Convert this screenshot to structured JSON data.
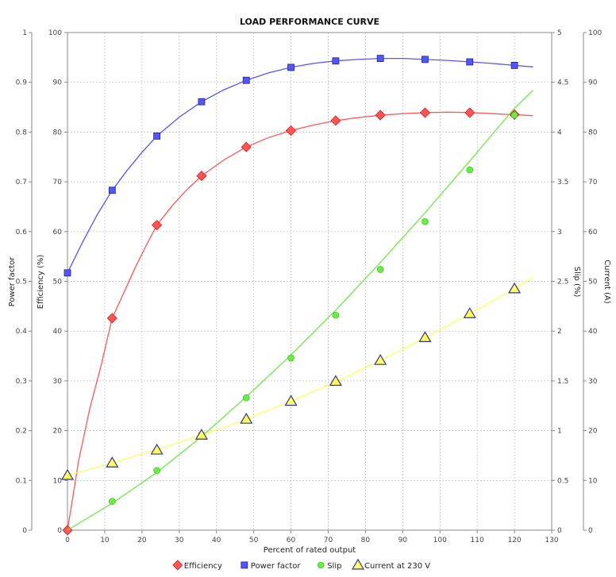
{
  "chart_data": {
    "type": "line",
    "title": "LOAD PERFORMANCE CURVE",
    "xlabel": "Percent of rated output",
    "xlim": [
      0,
      130
    ],
    "x_ticks": [
      0,
      10,
      20,
      30,
      40,
      50,
      60,
      70,
      80,
      90,
      100,
      110,
      120,
      130
    ],
    "grid": true,
    "legend_placement": "bottom",
    "axes": {
      "power_factor": {
        "label": "Power factor",
        "range": [
          0,
          1
        ],
        "ticks": [
          "0",
          "0.1",
          "0.2",
          "0.3",
          "0.4",
          "0.5",
          "0.6",
          "0.7",
          "0.8",
          "0.9",
          "1"
        ]
      },
      "efficiency": {
        "label": "Efficiency (%)",
        "range": [
          0,
          100
        ],
        "ticks": [
          "0",
          "10",
          "20",
          "30",
          "40",
          "50",
          "60",
          "70",
          "80",
          "90",
          "100"
        ]
      },
      "slip": {
        "label": "Slip (%)",
        "range": [
          0,
          5
        ],
        "ticks": [
          "0",
          "0.5",
          "1",
          "1.5",
          "2",
          "2.5",
          "3",
          "3.5",
          "4",
          "4.5",
          "5"
        ]
      },
      "current": {
        "label": "Current (A)",
        "range": [
          0,
          100
        ],
        "ticks": [
          "0",
          "10",
          "20",
          "30",
          "40",
          "50",
          "60",
          "70",
          "80",
          "90",
          "100"
        ]
      }
    },
    "series": [
      {
        "name": "Efficiency",
        "axis": "efficiency",
        "color": "#ff5555",
        "marker": "diamond",
        "points": [
          [
            0,
            0
          ],
          [
            12,
            42.6
          ],
          [
            24,
            61.3
          ],
          [
            36,
            71.2
          ],
          [
            48,
            77.0
          ],
          [
            60,
            80.3
          ],
          [
            72,
            82.3
          ],
          [
            84,
            83.4
          ],
          [
            96,
            83.9
          ],
          [
            108,
            83.9
          ],
          [
            120,
            83.5
          ]
        ],
        "curve": [
          [
            0,
            0
          ],
          [
            3,
            14
          ],
          [
            6,
            24.5
          ],
          [
            9,
            33
          ],
          [
            12,
            42.6
          ],
          [
            15,
            47.5
          ],
          [
            18,
            52.5
          ],
          [
            21,
            57
          ],
          [
            24,
            61.3
          ],
          [
            28,
            65.1
          ],
          [
            32,
            68.4
          ],
          [
            36,
            71.2
          ],
          [
            42,
            74.4
          ],
          [
            48,
            77.0
          ],
          [
            54,
            78.9
          ],
          [
            60,
            80.3
          ],
          [
            66,
            81.4
          ],
          [
            72,
            82.3
          ],
          [
            78,
            82.9
          ],
          [
            84,
            83.4
          ],
          [
            90,
            83.7
          ],
          [
            96,
            83.9
          ],
          [
            102,
            84.0
          ],
          [
            108,
            83.9
          ],
          [
            114,
            83.7
          ],
          [
            120,
            83.5
          ],
          [
            125,
            83.3
          ]
        ]
      },
      {
        "name": "Power factor",
        "axis": "power_factor",
        "color": "#5555ff",
        "marker": "square",
        "points": [
          [
            0,
            0.517
          ],
          [
            12,
            0.683
          ],
          [
            24,
            0.792
          ],
          [
            36,
            0.861
          ],
          [
            48,
            0.904
          ],
          [
            60,
            0.93
          ],
          [
            72,
            0.943
          ],
          [
            84,
            0.948
          ],
          [
            96,
            0.946
          ],
          [
            108,
            0.941
          ],
          [
            120,
            0.934
          ]
        ],
        "curve": [
          [
            0,
            0.517
          ],
          [
            4,
            0.578
          ],
          [
            8,
            0.634
          ],
          [
            12,
            0.683
          ],
          [
            16,
            0.723
          ],
          [
            20,
            0.759
          ],
          [
            24,
            0.792
          ],
          [
            30,
            0.83
          ],
          [
            36,
            0.861
          ],
          [
            42,
            0.885
          ],
          [
            48,
            0.904
          ],
          [
            54,
            0.919
          ],
          [
            60,
            0.93
          ],
          [
            66,
            0.938
          ],
          [
            72,
            0.943
          ],
          [
            78,
            0.946
          ],
          [
            84,
            0.948
          ],
          [
            90,
            0.948
          ],
          [
            96,
            0.946
          ],
          [
            102,
            0.944
          ],
          [
            108,
            0.941
          ],
          [
            114,
            0.938
          ],
          [
            120,
            0.934
          ],
          [
            125,
            0.931
          ]
        ]
      },
      {
        "name": "Slip",
        "axis": "slip",
        "color": "#66ee44",
        "marker": "circle",
        "points": [
          [
            12,
            0.29
          ],
          [
            24,
            0.6
          ],
          [
            36,
            0.96
          ],
          [
            48,
            1.33
          ],
          [
            60,
            1.73
          ],
          [
            72,
            2.16
          ],
          [
            84,
            2.62
          ],
          [
            96,
            3.1
          ],
          [
            108,
            3.62
          ],
          [
            120,
            4.17
          ]
        ],
        "curve": [
          [
            0,
            0
          ],
          [
            12,
            0.27
          ],
          [
            24,
            0.58
          ],
          [
            36,
            0.94
          ],
          [
            48,
            1.34
          ],
          [
            60,
            1.76
          ],
          [
            72,
            2.21
          ],
          [
            84,
            2.69
          ],
          [
            96,
            3.19
          ],
          [
            108,
            3.71
          ],
          [
            120,
            4.24
          ],
          [
            125,
            4.42
          ]
        ]
      },
      {
        "name": "Current at 230 V",
        "axis": "current",
        "color": "#ffff55",
        "marker": "triangle",
        "points": [
          [
            0,
            11.0
          ],
          [
            12,
            13.5
          ],
          [
            24,
            16.1
          ],
          [
            36,
            19.1
          ],
          [
            48,
            22.3
          ],
          [
            60,
            25.9
          ],
          [
            72,
            29.9
          ],
          [
            84,
            34.1
          ],
          [
            96,
            38.7
          ],
          [
            108,
            43.5
          ],
          [
            120,
            48.5
          ]
        ],
        "curve": [
          [
            0,
            11.0
          ],
          [
            12,
            13.5
          ],
          [
            24,
            16.2
          ],
          [
            36,
            19.1
          ],
          [
            48,
            22.3
          ],
          [
            60,
            25.9
          ],
          [
            72,
            29.8
          ],
          [
            84,
            34.1
          ],
          [
            96,
            38.7
          ],
          [
            108,
            43.5
          ],
          [
            120,
            48.5
          ],
          [
            125,
            50.8
          ]
        ]
      }
    ]
  }
}
